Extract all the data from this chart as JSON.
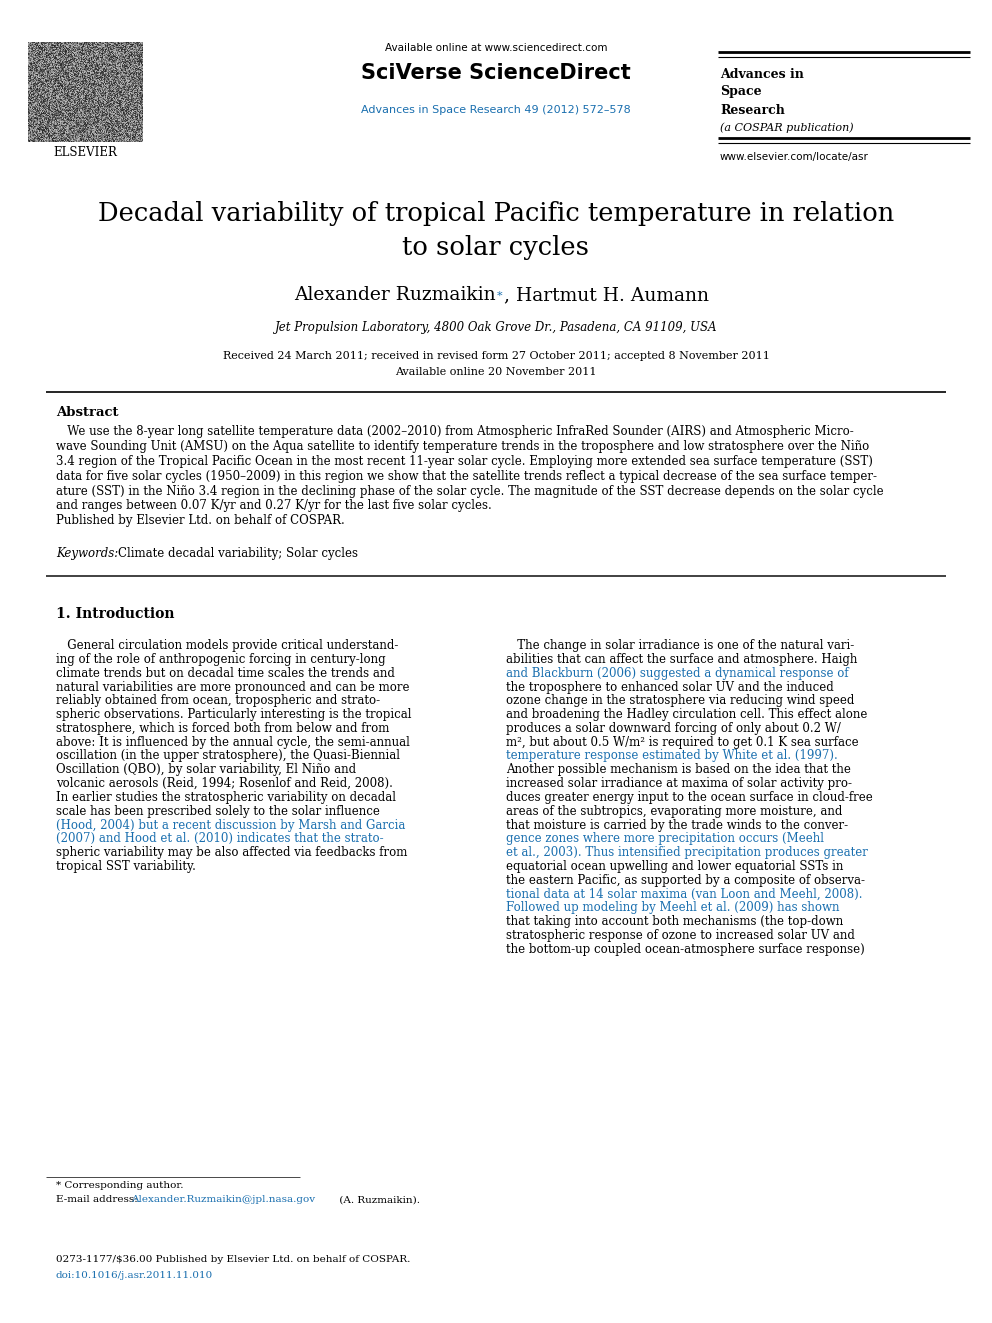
{
  "bg_color": "#ffffff",
  "header": {
    "available_online": "Available online at www.sciencedirect.com",
    "sciverse": "SciVerse ScienceDirect",
    "journal_link": "Advances in Space Research 49 (2012) 572–578",
    "journal_right_line1": "Advances in",
    "journal_right_line2": "Space",
    "journal_right_line3": "Research",
    "journal_right_italic": "(a COSPAR publication)",
    "journal_right_url": "www.elsevier.com/locate/asr"
  },
  "title_line1": "Decadal variability of tropical Pacific temperature in relation",
  "title_line2": "to solar cycles",
  "authors_pre": "Alexander Ruzmaikin",
  "authors_post": ", Hartmut H. Aumann",
  "affiliation": "Jet Propulsion Laboratory, 4800 Oak Grove Dr., Pasadena, CA 91109, USA",
  "received": "Received 24 March 2011; received in revised form 27 October 2011; accepted 8 November 2011",
  "available": "Available online 20 November 2011",
  "abstract_title": "Abstract",
  "abstract_lines": [
    "   We use the 8-year long satellite temperature data (2002–2010) from Atmospheric InfraRed Sounder (AIRS) and Atmospheric Micro-",
    "wave Sounding Unit (AMSU) on the Aqua satellite to identify temperature trends in the troposphere and low stratosphere over the Niño",
    "3.4 region of the Tropical Pacific Ocean in the most recent 11-year solar cycle. Employing more extended sea surface temperature (SST)",
    "data for five solar cycles (1950–2009) in this region we show that the satellite trends reflect a typical decrease of the sea surface temper-",
    "ature (SST) in the Niño 3.4 region in the declining phase of the solar cycle. The magnitude of the SST decrease depends on the solar cycle",
    "and ranges between 0.07 K/yr and 0.27 K/yr for the last five solar cycles.",
    "Published by Elsevier Ltd. on behalf of COSPAR."
  ],
  "keywords_label": "Keywords:",
  "keywords_text": "Climate decadal variability; Solar cycles",
  "section1_title": "1. Introduction",
  "col1_lines": [
    "   General circulation models provide critical understand-",
    "ing of the role of anthropogenic forcing in century-long",
    "climate trends but on decadal time scales the trends and",
    "natural variabilities are more pronounced and can be more",
    "reliably obtained from ocean, tropospheric and strato-",
    "spheric observations. Particularly interesting is the tropical",
    "stratosphere, which is forced both from below and from",
    "above: It is influenced by the annual cycle, the semi-annual",
    "oscillation (in the upper stratosphere), the Quasi-Biennial",
    "Oscillation (QBO), by solar variability, El Niño and",
    "volcanic aerosols (Reid, 1994; Rosenlof and Reid, 2008).",
    "In earlier studies the stratospheric variability on decadal",
    "scale has been prescribed solely to the solar influence",
    "(Hood, 2004) but a recent discussion by Marsh and Garcia",
    "(2007) and Hood et al. (2010) indicates that the strato-",
    "spheric variability may be also affected via feedbacks from",
    "tropical SST variability."
  ],
  "col1_line_colors": [
    "black",
    "black",
    "black",
    "black",
    "black",
    "black",
    "black",
    "black",
    "black",
    "black",
    "black",
    "black",
    "black",
    "blue",
    "blue",
    "black",
    "black"
  ],
  "col2_lines": [
    "   The change in solar irradiance is one of the natural vari-",
    "abilities that can affect the surface and atmosphere. Haigh",
    "and Blackburn (2006) suggested a dynamical response of",
    "the troposphere to enhanced solar UV and the induced",
    "ozone change in the stratosphere via reducing wind speed",
    "and broadening the Hadley circulation cell. This effect alone",
    "produces a solar downward forcing of only about 0.2 W/",
    "m², but about 0.5 W/m² is required to get 0.1 K sea surface",
    "temperature response estimated by White et al. (1997).",
    "Another possible mechanism is based on the idea that the",
    "increased solar irradiance at maxima of solar activity pro-",
    "duces greater energy input to the ocean surface in cloud-free",
    "areas of the subtropics, evaporating more moisture, and",
    "that moisture is carried by the trade winds to the conver-",
    "gence zones where more precipitation occurs (Meehl",
    "et al., 2003). Thus intensified precipitation produces greater",
    "equatorial ocean upwelling and lower equatorial SSTs in",
    "the eastern Pacific, as supported by a composite of observa-",
    "tional data at 14 solar maxima (van Loon and Meehl, 2008).",
    "Followed up modeling by Meehl et al. (2009) has shown",
    "that taking into account both mechanisms (the top-down",
    "stratospheric response of ozone to increased solar UV and",
    "the bottom-up coupled ocean-atmosphere surface response)"
  ],
  "col2_line_colors": [
    "black",
    "black",
    "blue",
    "black",
    "black",
    "black",
    "black",
    "black",
    "blue",
    "black",
    "black",
    "black",
    "black",
    "black",
    "blue",
    "blue",
    "black",
    "black",
    "blue",
    "blue",
    "black",
    "black",
    "black"
  ],
  "footnote_star": "* Corresponding author.",
  "footnote_email_pre": "E-mail address: ",
  "footnote_email_link": "Alexander.Ruzmaikin@jpl.nasa.gov",
  "footnote_email_post": " (A. Ruzmaikin).",
  "footer_line1": "0273-1177/$36.00 Published by Elsevier Ltd. on behalf of COSPAR.",
  "footer_line2": "doi:10.1016/j.asr.2011.11.010",
  "link_color": "#1a6faf",
  "text_color": "#000000"
}
